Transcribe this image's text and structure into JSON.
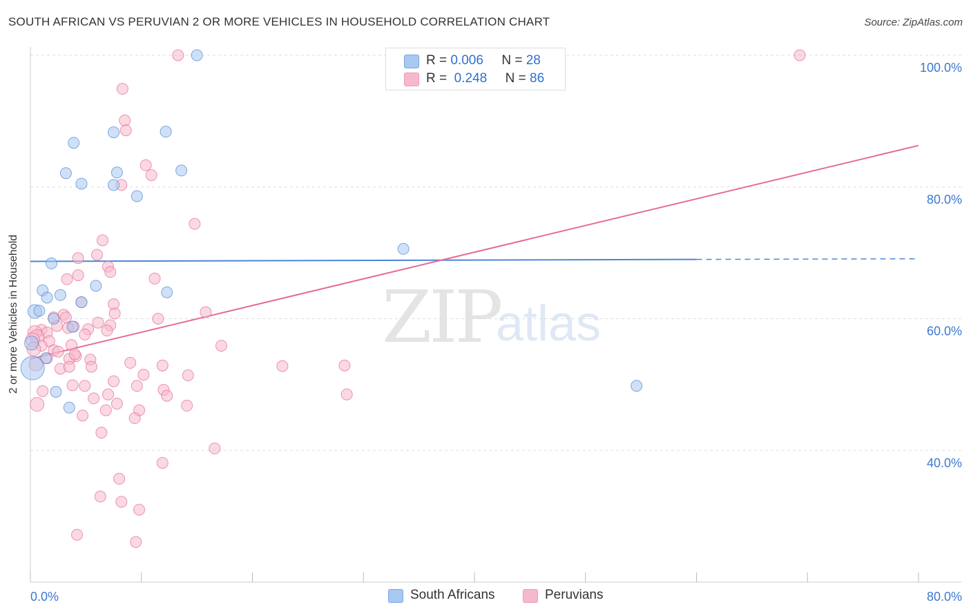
{
  "header": {
    "title": "SOUTH AFRICAN VS PERUVIAN 2 OR MORE VEHICLES IN HOUSEHOLD CORRELATION CHART",
    "source": "Source: ZipAtlas.com"
  },
  "watermark": {
    "zip": "ZIP",
    "atlas": "atlas"
  },
  "legend": {
    "south_africans": {
      "r_label": "R =",
      "r_value": "0.006",
      "n_label": "N =",
      "n_value": "28",
      "color": "#a9c8f0"
    },
    "peruvians": {
      "r_label": "R =",
      "r_value": "0.248",
      "n_label": "N =",
      "n_value": "86",
      "color": "#f6b9cb"
    }
  },
  "bottom_legend": {
    "south_africans": "South Africans",
    "peruvians": "Peruvians"
  },
  "chart_data": {
    "type": "scatter",
    "title": "SOUTH AFRICAN VS PERUVIAN 2 OR MORE VEHICLES IN HOUSEHOLD CORRELATION CHART",
    "xlabel": "",
    "ylabel": "2 or more Vehicles in Household",
    "xlim": [
      0,
      80
    ],
    "ylim": [
      20,
      100
    ],
    "x_tick_labels": [
      "0.0%",
      "80.0%"
    ],
    "y_tick_values": [
      40,
      60,
      80,
      100
    ],
    "y_tick_labels": [
      "40.0%",
      "60.0%",
      "80.0%",
      "100.0%"
    ],
    "grid": true,
    "series": [
      {
        "name": "South Africans",
        "color": "#4b86d6",
        "fill": "#a9c8f0",
        "r": 0.006,
        "n": 28,
        "trend": {
          "x": [
            0,
            60
          ],
          "y": [
            68.7,
            69.0
          ],
          "dashed_to": 80
        },
        "points": [
          [
            15,
            100
          ],
          [
            7.5,
            88.3
          ],
          [
            12.2,
            88.4
          ],
          [
            3.9,
            86.7
          ],
          [
            3.2,
            82.1
          ],
          [
            7.8,
            82.2
          ],
          [
            13.6,
            82.5
          ],
          [
            4.6,
            80.5
          ],
          [
            7.5,
            80.3
          ],
          [
            9.6,
            78.6
          ],
          [
            33.6,
            70.6
          ],
          [
            1.9,
            68.4
          ],
          [
            5.9,
            65.0
          ],
          [
            1.1,
            64.3
          ],
          [
            12.3,
            64.0
          ],
          [
            2.7,
            63.6
          ],
          [
            1.5,
            63.2
          ],
          [
            4.6,
            62.5
          ],
          [
            0.4,
            61.1
          ],
          [
            0.8,
            61.2
          ],
          [
            2.1,
            60.0
          ],
          [
            3.8,
            58.8
          ],
          [
            0.1,
            56.3
          ],
          [
            1.4,
            54.0
          ],
          [
            0.2,
            52.5
          ],
          [
            2.3,
            48.9
          ],
          [
            3.5,
            46.5
          ],
          [
            54.6,
            49.8
          ]
        ]
      },
      {
        "name": "Peruvians",
        "color": "#e56a96",
        "fill": "#f6b9cb",
        "r": 0.248,
        "n": 86,
        "trend": {
          "x": [
            0,
            80
          ],
          "y": [
            53.9,
            86.3
          ]
        },
        "points": [
          [
            13.3,
            100
          ],
          [
            69.3,
            100
          ],
          [
            8.3,
            94.9
          ],
          [
            8.5,
            90.1
          ],
          [
            8.6,
            88.6
          ],
          [
            10.4,
            83.3
          ],
          [
            10.9,
            81.8
          ],
          [
            8.2,
            80.3
          ],
          [
            14.8,
            74.4
          ],
          [
            6.5,
            71.9
          ],
          [
            6.0,
            69.7
          ],
          [
            4.3,
            69.2
          ],
          [
            7.0,
            67.9
          ],
          [
            7.2,
            67.1
          ],
          [
            4.3,
            66.6
          ],
          [
            3.3,
            66.0
          ],
          [
            11.2,
            66.1
          ],
          [
            4.6,
            62.5
          ],
          [
            7.5,
            62.2
          ],
          [
            15.8,
            61.0
          ],
          [
            7.6,
            60.8
          ],
          [
            2.1,
            60.2
          ],
          [
            3.0,
            60.6
          ],
          [
            11.5,
            60.0
          ],
          [
            3.2,
            60.2
          ],
          [
            6.1,
            59.4
          ],
          [
            7.2,
            59.0
          ],
          [
            3.9,
            58.8
          ],
          [
            2.4,
            58.9
          ],
          [
            1.0,
            58.3
          ],
          [
            3.4,
            58.6
          ],
          [
            5.2,
            58.4
          ],
          [
            0.4,
            57.9
          ],
          [
            4.9,
            57.6
          ],
          [
            1.5,
            57.9
          ],
          [
            0.6,
            57.3
          ],
          [
            0.2,
            56.8
          ],
          [
            1.7,
            56.6
          ],
          [
            1.0,
            55.9
          ],
          [
            3.7,
            56.0
          ],
          [
            17.2,
            55.9
          ],
          [
            0.3,
            55.4
          ],
          [
            2.1,
            55.2
          ],
          [
            2.5,
            55.0
          ],
          [
            4.1,
            54.3
          ],
          [
            1.5,
            54.0
          ],
          [
            3.5,
            53.9
          ],
          [
            5.4,
            53.8
          ],
          [
            9.0,
            53.3
          ],
          [
            0.5,
            53.1
          ],
          [
            11.9,
            52.9
          ],
          [
            5.5,
            52.7
          ],
          [
            22.7,
            52.8
          ],
          [
            28.3,
            52.9
          ],
          [
            2.7,
            52.4
          ],
          [
            3.5,
            52.7
          ],
          [
            10.2,
            51.5
          ],
          [
            14.2,
            51.4
          ],
          [
            7.5,
            50.5
          ],
          [
            3.8,
            49.9
          ],
          [
            4.9,
            49.8
          ],
          [
            9.6,
            49.8
          ],
          [
            12.0,
            49.2
          ],
          [
            7.0,
            48.5
          ],
          [
            5.7,
            47.9
          ],
          [
            12.3,
            48.3
          ],
          [
            0.6,
            47.0
          ],
          [
            7.8,
            47.1
          ],
          [
            14.1,
            46.8
          ],
          [
            28.5,
            48.5
          ],
          [
            6.8,
            46.1
          ],
          [
            9.8,
            46.1
          ],
          [
            4.7,
            45.3
          ],
          [
            9.4,
            44.9
          ],
          [
            6.4,
            42.7
          ],
          [
            16.6,
            40.3
          ],
          [
            11.9,
            38.1
          ],
          [
            8.0,
            35.7
          ],
          [
            6.3,
            33.0
          ],
          [
            8.2,
            32.2
          ],
          [
            9.8,
            31.0
          ],
          [
            4.2,
            27.2
          ],
          [
            9.5,
            26.1
          ],
          [
            1.1,
            49.0
          ],
          [
            6.9,
            58.2
          ],
          [
            4.0,
            54.6
          ]
        ]
      }
    ]
  }
}
